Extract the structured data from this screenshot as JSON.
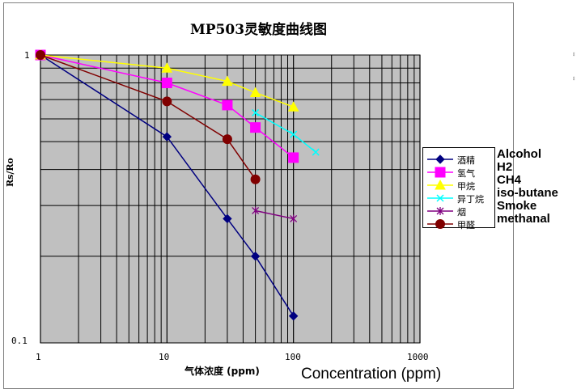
{
  "chart_data": {
    "type": "line",
    "title": "MP503灵敏度曲线图",
    "xlabel": "气体浓度 (ppm)",
    "xlabel_overlay": "Concentration (ppm)",
    "ylabel": "Rs/Ro",
    "x_scale": "log",
    "y_scale": "log",
    "xlim": [
      1,
      1000
    ],
    "ylim": [
      0.1,
      1
    ],
    "x_ticks": [
      "1",
      "10",
      "100",
      "1000"
    ],
    "y_ticks": [
      "1",
      "0.1"
    ],
    "grid": true,
    "plot_background": "#c0c0c0",
    "legend_position": "right",
    "series": [
      {
        "name": "酒精",
        "overlay_name": "Alcohol",
        "color": "#000080",
        "marker": "diamond",
        "x": [
          1,
          10,
          30,
          50,
          100
        ],
        "y": [
          1.0,
          0.52,
          0.27,
          0.2,
          0.124
        ]
      },
      {
        "name": "氢气",
        "overlay_name": "H2",
        "color": "#ff00ff",
        "marker": "square",
        "x": [
          1,
          10,
          30,
          50,
          100
        ],
        "y": [
          1.0,
          0.8,
          0.67,
          0.56,
          0.44
        ]
      },
      {
        "name": "甲烷",
        "overlay_name": "CH4",
        "color": "#ffff00",
        "marker": "triangle",
        "x": [
          1,
          10,
          30,
          50,
          100
        ],
        "y": [
          1.0,
          0.9,
          0.81,
          0.74,
          0.66
        ]
      },
      {
        "name": "异丁烷",
        "overlay_name": "iso-butane",
        "color": "#00ffff",
        "marker": "x",
        "x": [
          50,
          100,
          150
        ],
        "y": [
          0.63,
          0.53,
          0.46
        ]
      },
      {
        "name": "烟",
        "overlay_name": "Smoke",
        "color": "#800080",
        "marker": "star",
        "x": [
          50,
          100
        ],
        "y": [
          0.288,
          0.27
        ]
      },
      {
        "name": "甲醛",
        "overlay_name": "methanal",
        "color": "#800000",
        "marker": "circle",
        "x": [
          1,
          10,
          30,
          50
        ],
        "y": [
          1.0,
          0.69,
          0.51,
          0.37
        ]
      }
    ]
  }
}
